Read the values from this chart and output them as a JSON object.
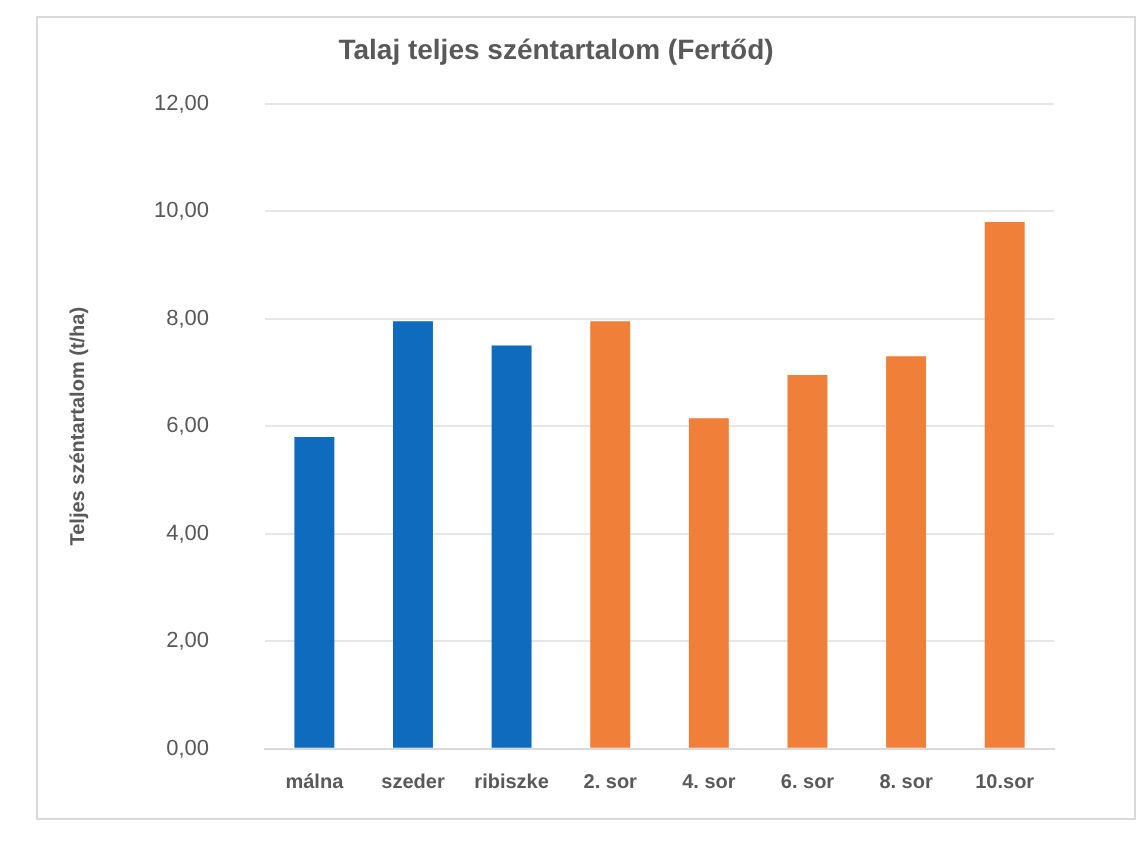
{
  "chart_data": {
    "type": "bar",
    "title": "Talaj teljes széntartalom (Fertőd)",
    "ylabel": "Teljes széntartalom (t/ha)",
    "categories": [
      "málna",
      "szeder",
      "ribiszke",
      "2. sor",
      "4. sor",
      "6. sor",
      "8. sor",
      "10.sor"
    ],
    "values": [
      5.8,
      7.95,
      7.5,
      7.95,
      6.15,
      6.95,
      7.3,
      9.8
    ],
    "colors": [
      "#0e6bbd",
      "#0e6bbd",
      "#0e6bbd",
      "#f07f3a",
      "#f07f3a",
      "#f07f3a",
      "#f07f3a",
      "#f07f3a"
    ],
    "ylim": [
      0,
      12
    ],
    "yticks": [
      {
        "value": 0,
        "label": "0,00"
      },
      {
        "value": 2,
        "label": "2,00"
      },
      {
        "value": 4,
        "label": "4,00"
      },
      {
        "value": 6,
        "label": "6,00"
      },
      {
        "value": 8,
        "label": "8,00"
      },
      {
        "value": 10,
        "label": "10,00"
      },
      {
        "value": 12,
        "label": "12,00"
      }
    ],
    "grid": "y",
    "legend": false
  }
}
